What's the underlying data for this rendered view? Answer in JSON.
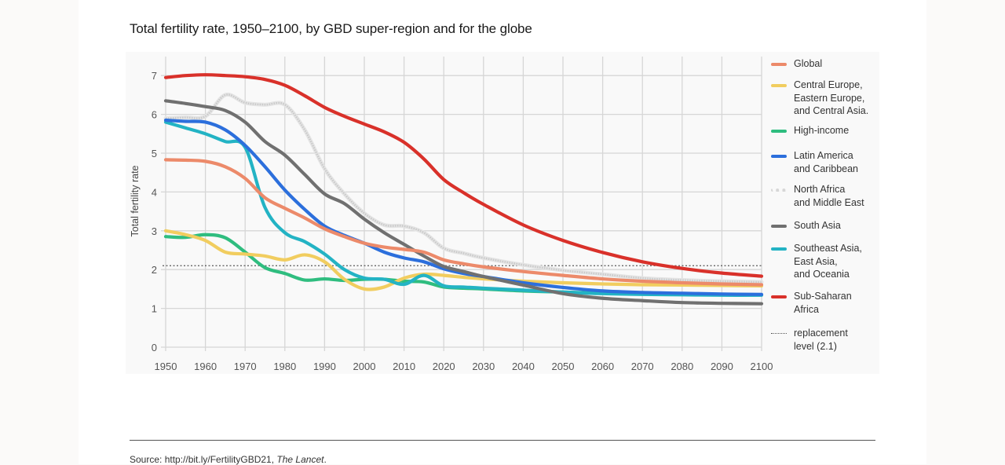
{
  "title": "Total fertility rate, 1950–2100, by GBD super-region and for the globe",
  "source": {
    "prefix": "Source: http://bit.ly/FertilityGBD21, ",
    "publication": "The Lancet",
    "suffix": "."
  },
  "chart_data": {
    "type": "line",
    "title": "Total fertility rate, 1950–2100, by GBD super-region and for the globe",
    "xlabel": "",
    "ylabel": "Total fertility rate",
    "xlim": [
      1950,
      2100
    ],
    "ylim": [
      0,
      7.4
    ],
    "grid": true,
    "legend_position": "right",
    "x_ticks": [
      "1950",
      "1960",
      "1970",
      "1980",
      "1990",
      "2000",
      "2010",
      "2020",
      "2030",
      "2040",
      "2050",
      "2060",
      "2070",
      "2080",
      "2090",
      "2100"
    ],
    "y_ticks": [
      "0",
      "1",
      "2",
      "3",
      "4",
      "5",
      "6",
      "7"
    ],
    "x": [
      1950,
      1955,
      1960,
      1965,
      1970,
      1975,
      1980,
      1985,
      1990,
      1995,
      2000,
      2005,
      2010,
      2015,
      2020,
      2025,
      2030,
      2040,
      2050,
      2060,
      2070,
      2080,
      2090,
      2100
    ],
    "series": [
      {
        "name": "Global",
        "color": "#ec8a6a",
        "style": "solid",
        "values": [
          4.83,
          4.82,
          4.79,
          4.65,
          4.35,
          3.85,
          3.58,
          3.33,
          3.05,
          2.85,
          2.68,
          2.58,
          2.52,
          2.45,
          2.25,
          2.15,
          2.07,
          1.95,
          1.85,
          1.76,
          1.7,
          1.66,
          1.63,
          1.61
        ]
      },
      {
        "name": "Central Europe, Eastern Europe, and Central Asia",
        "color": "#f1cd5f",
        "style": "solid",
        "values": [
          3.0,
          2.9,
          2.75,
          2.45,
          2.4,
          2.35,
          2.25,
          2.38,
          2.2,
          1.75,
          1.5,
          1.55,
          1.78,
          1.88,
          1.85,
          1.8,
          1.76,
          1.7,
          1.66,
          1.63,
          1.61,
          1.6,
          1.59,
          1.58
        ]
      },
      {
        "name": "High-income",
        "color": "#2fbd7f",
        "style": "solid",
        "values": [
          2.85,
          2.83,
          2.9,
          2.82,
          2.45,
          2.05,
          1.9,
          1.73,
          1.76,
          1.72,
          1.75,
          1.75,
          1.7,
          1.68,
          1.55,
          1.52,
          1.5,
          1.45,
          1.42,
          1.39,
          1.37,
          1.36,
          1.35,
          1.35
        ]
      },
      {
        "name": "Latin America and Caribbean",
        "color": "#2c6fdc",
        "style": "solid",
        "values": [
          5.85,
          5.82,
          5.8,
          5.6,
          5.2,
          4.65,
          4.05,
          3.55,
          3.12,
          2.88,
          2.68,
          2.45,
          2.3,
          2.2,
          2.02,
          1.9,
          1.82,
          1.66,
          1.54,
          1.45,
          1.41,
          1.39,
          1.37,
          1.36
        ]
      },
      {
        "name": "North Africa and Middle East",
        "color": "#d7d7d7",
        "style": "dotted",
        "values": [
          5.9,
          5.92,
          5.95,
          6.5,
          6.3,
          6.25,
          6.25,
          5.6,
          4.6,
          3.95,
          3.45,
          3.15,
          3.12,
          2.95,
          2.55,
          2.42,
          2.3,
          2.12,
          1.98,
          1.88,
          1.78,
          1.73,
          1.7,
          1.68
        ]
      },
      {
        "name": "South Asia",
        "color": "#707070",
        "style": "solid",
        "values": [
          6.35,
          6.28,
          6.2,
          6.1,
          5.8,
          5.3,
          4.95,
          4.45,
          3.95,
          3.7,
          3.3,
          2.95,
          2.65,
          2.35,
          2.08,
          1.95,
          1.82,
          1.6,
          1.38,
          1.26,
          1.2,
          1.15,
          1.13,
          1.12
        ]
      },
      {
        "name": "Southeast Asia, East Asia, and Oceania",
        "color": "#23b3c4",
        "style": "solid",
        "values": [
          5.8,
          5.65,
          5.5,
          5.3,
          5.15,
          3.6,
          2.95,
          2.72,
          2.4,
          2.0,
          1.78,
          1.75,
          1.62,
          1.85,
          1.58,
          1.55,
          1.52,
          1.47,
          1.42,
          1.38,
          1.36,
          1.35,
          1.34,
          1.34
        ]
      },
      {
        "name": "Sub-Saharan Africa",
        "color": "#d9312a",
        "style": "solid",
        "values": [
          6.95,
          7.0,
          7.02,
          7.0,
          6.97,
          6.9,
          6.75,
          6.48,
          6.18,
          5.95,
          5.75,
          5.55,
          5.28,
          4.85,
          4.32,
          3.98,
          3.68,
          3.15,
          2.75,
          2.44,
          2.2,
          2.03,
          1.91,
          1.83
        ]
      }
    ],
    "reference_lines": [
      {
        "name": "replacement level (2.1)",
        "value": 2.1,
        "style": "dotted",
        "color": "#555555"
      }
    ]
  },
  "legend": [
    {
      "label": "Global",
      "series": 0
    },
    {
      "label": "Central Europe,\nEastern Europe,\nand Central Asia.",
      "series": 1
    },
    {
      "label": "High-income",
      "series": 2
    },
    {
      "label": "Latin America\nand Caribbean",
      "series": 3
    },
    {
      "label": "North Africa\nand Middle East",
      "series": 4
    },
    {
      "label": "South Asia",
      "series": 5
    },
    {
      "label": "Southeast Asia,\nEast Asia,\nand Oceania",
      "series": 6
    },
    {
      "label": "Sub-Saharan\nAfrica",
      "series": 7
    },
    {
      "label": "replacement\nlevel (2.1)",
      "reference": 0
    }
  ]
}
